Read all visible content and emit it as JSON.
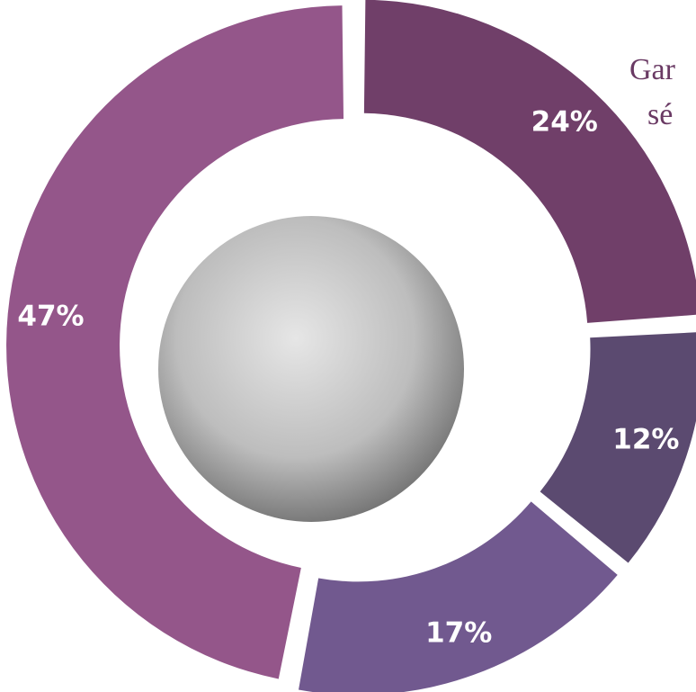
{
  "chart_data": {
    "type": "pie",
    "categories": [
      null,
      null,
      null,
      null
    ],
    "values": [
      24,
      12,
      17,
      47
    ],
    "value_labels": [
      "24%",
      "12%",
      "17%",
      "47%"
    ],
    "colors": [
      "#703f69",
      "#5b4a70",
      "#71598f",
      "#94568a"
    ],
    "annotations": [
      "Gar",
      "sé"
    ]
  }
}
